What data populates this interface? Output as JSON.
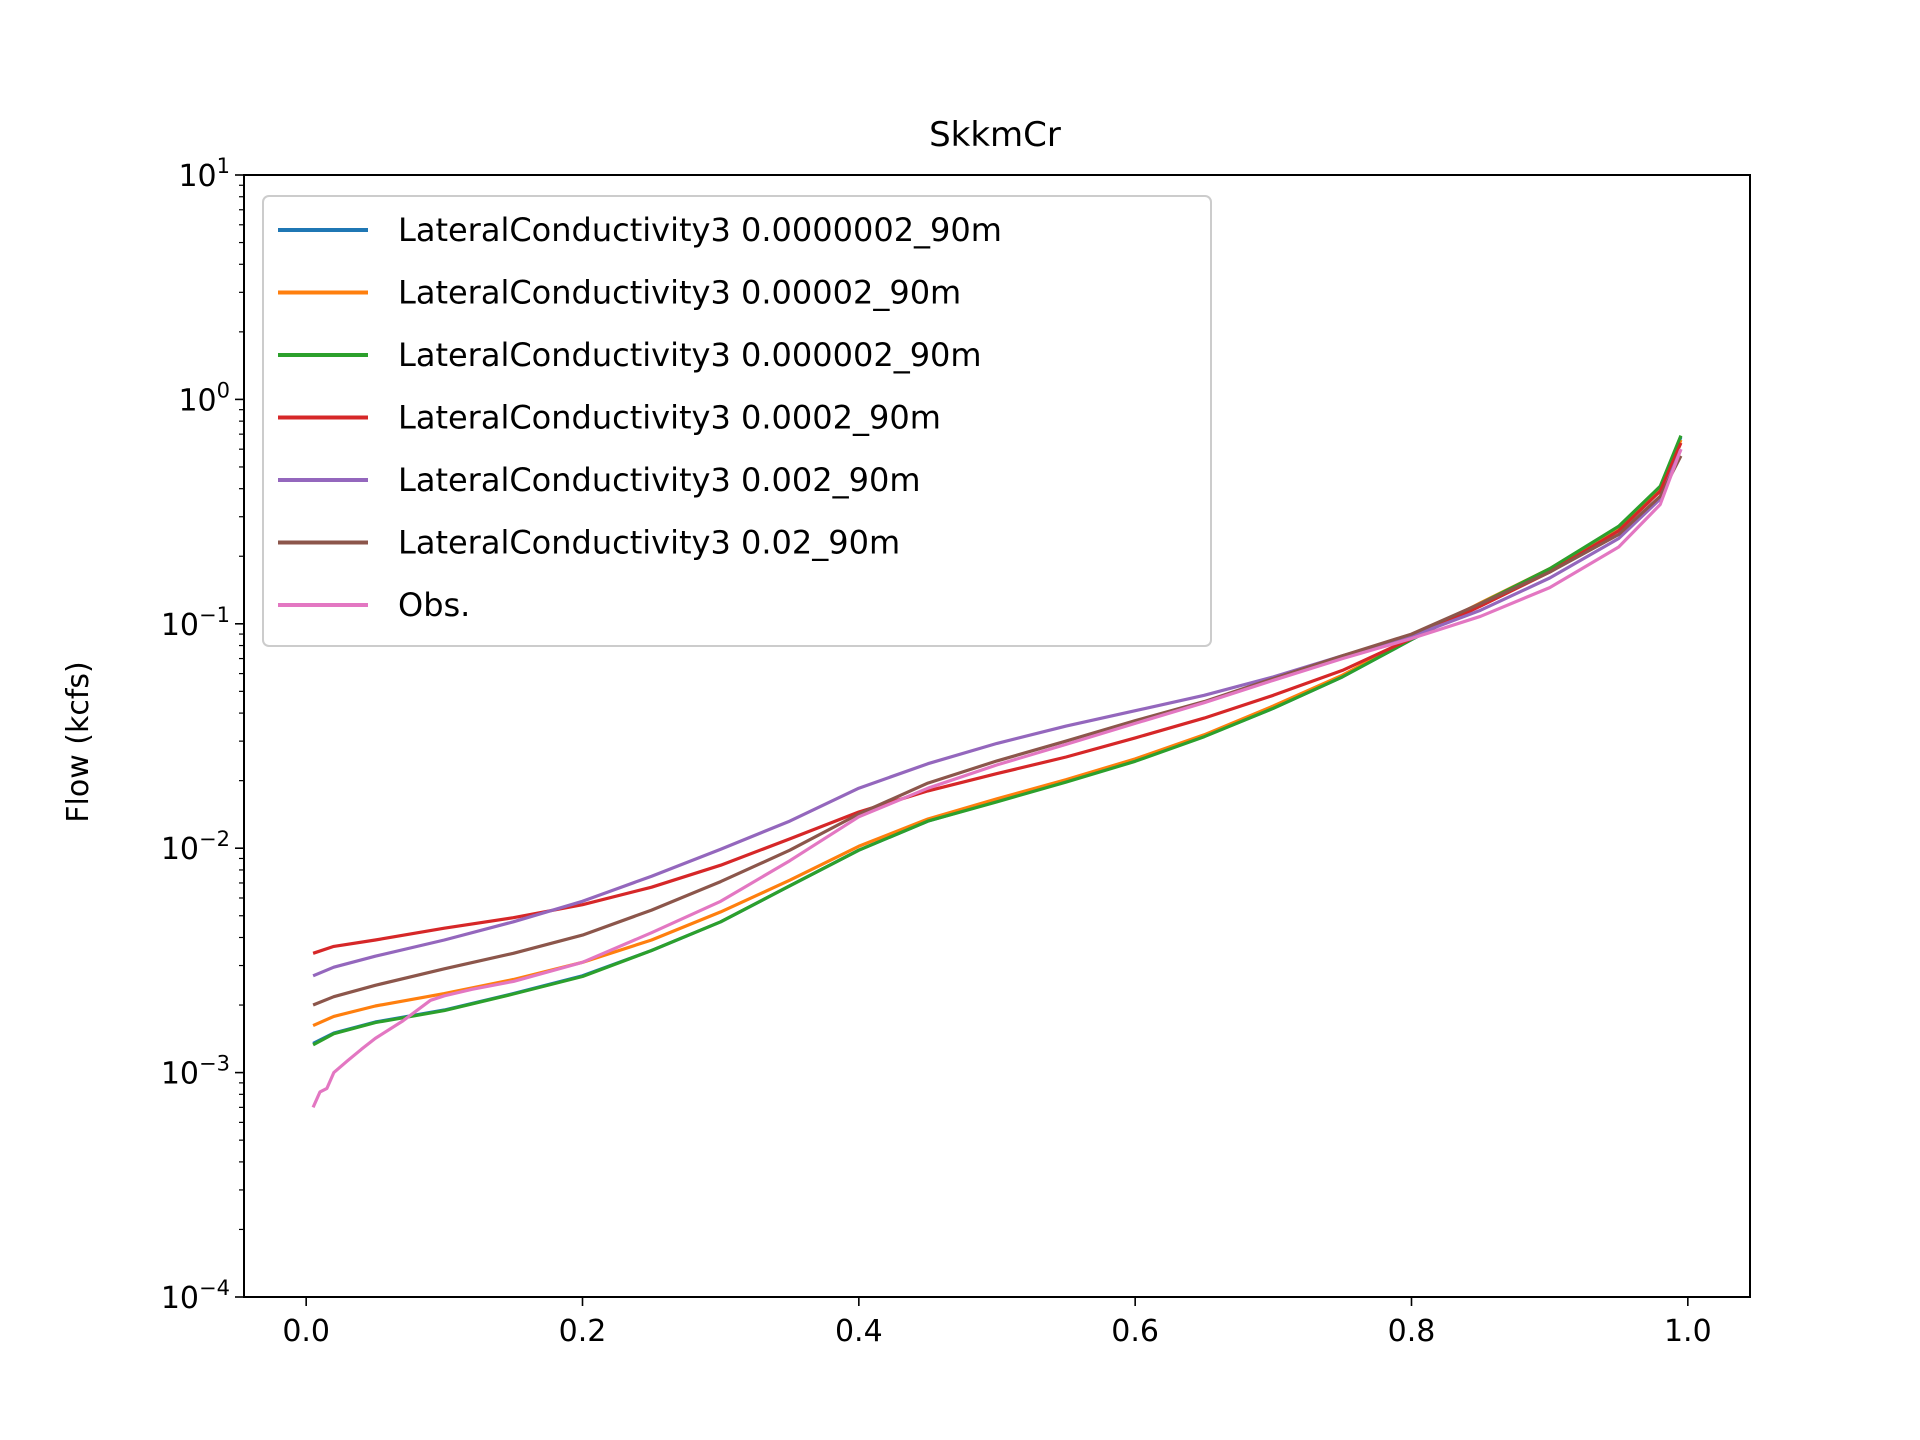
{
  "chart_data": {
    "type": "line",
    "title": "SkkmCr",
    "xlabel": "",
    "ylabel": "Flow (kcfs)",
    "xlim": [
      -0.045,
      1.045
    ],
    "ylim": [
      0.0001,
      10
    ],
    "yscale": "log",
    "x_ticks": [
      "0.0",
      "0.2",
      "0.4",
      "0.6",
      "0.8",
      "1.0"
    ],
    "x_tick_values": [
      0,
      0.2,
      0.4,
      0.6,
      0.8,
      1.0
    ],
    "y_ticks": [
      {
        "base": "10",
        "exp": "1",
        "value": 10
      },
      {
        "base": "10",
        "exp": "0",
        "value": 1
      },
      {
        "base": "10",
        "exp": "−1",
        "value": 0.1
      },
      {
        "base": "10",
        "exp": "−2",
        "value": 0.01
      },
      {
        "base": "10",
        "exp": "−3",
        "value": 0.001
      },
      {
        "base": "10",
        "exp": "−4",
        "value": 0.0001
      }
    ],
    "grid": false,
    "legend_position": "upper-left",
    "series": [
      {
        "name": "LateralConductivity3 0.0000002_90m",
        "color": "#1f77b4",
        "points": [
          [
            0.005,
            0.00135
          ],
          [
            0.02,
            0.0015
          ],
          [
            0.05,
            0.00168
          ],
          [
            0.1,
            0.0019
          ],
          [
            0.15,
            0.00225
          ],
          [
            0.2,
            0.0027
          ],
          [
            0.25,
            0.0035
          ],
          [
            0.3,
            0.0047
          ],
          [
            0.35,
            0.0068
          ],
          [
            0.4,
            0.0098
          ],
          [
            0.45,
            0.0132
          ],
          [
            0.5,
            0.0162
          ],
          [
            0.55,
            0.0198
          ],
          [
            0.6,
            0.0245
          ],
          [
            0.65,
            0.0315
          ],
          [
            0.7,
            0.042
          ],
          [
            0.75,
            0.058
          ],
          [
            0.8,
            0.085
          ],
          [
            0.85,
            0.123
          ],
          [
            0.9,
            0.175
          ],
          [
            0.95,
            0.27
          ],
          [
            0.98,
            0.4
          ],
          [
            0.995,
            0.68
          ]
        ]
      },
      {
        "name": "LateralConductivity3 0.00002_90m",
        "color": "#ff7f0e",
        "points": [
          [
            0.005,
            0.00162
          ],
          [
            0.02,
            0.00178
          ],
          [
            0.05,
            0.00198
          ],
          [
            0.1,
            0.00225
          ],
          [
            0.15,
            0.0026
          ],
          [
            0.2,
            0.0031
          ],
          [
            0.25,
            0.0039
          ],
          [
            0.3,
            0.0052
          ],
          [
            0.35,
            0.0072
          ],
          [
            0.4,
            0.0102
          ],
          [
            0.45,
            0.0135
          ],
          [
            0.5,
            0.0166
          ],
          [
            0.55,
            0.0202
          ],
          [
            0.6,
            0.025
          ],
          [
            0.65,
            0.032
          ],
          [
            0.7,
            0.043
          ],
          [
            0.75,
            0.059
          ],
          [
            0.8,
            0.086
          ],
          [
            0.85,
            0.124
          ],
          [
            0.9,
            0.176
          ],
          [
            0.95,
            0.27
          ],
          [
            0.98,
            0.4
          ],
          [
            0.995,
            0.66
          ]
        ]
      },
      {
        "name": "LateralConductivity3 0.000002_90m",
        "color": "#2ca02c",
        "points": [
          [
            0.005,
            0.00133
          ],
          [
            0.02,
            0.00149
          ],
          [
            0.05,
            0.00167
          ],
          [
            0.1,
            0.00189
          ],
          [
            0.15,
            0.00224
          ],
          [
            0.2,
            0.00268
          ],
          [
            0.25,
            0.0035
          ],
          [
            0.3,
            0.0047
          ],
          [
            0.35,
            0.0068
          ],
          [
            0.4,
            0.0098
          ],
          [
            0.45,
            0.0132
          ],
          [
            0.5,
            0.0161
          ],
          [
            0.55,
            0.0197
          ],
          [
            0.6,
            0.0244
          ],
          [
            0.65,
            0.0314
          ],
          [
            0.7,
            0.042
          ],
          [
            0.75,
            0.058
          ],
          [
            0.8,
            0.085
          ],
          [
            0.85,
            0.123
          ],
          [
            0.9,
            0.176
          ],
          [
            0.95,
            0.272
          ],
          [
            0.98,
            0.41
          ],
          [
            0.995,
            0.69
          ]
        ]
      },
      {
        "name": "LateralConductivity3 0.0002_90m",
        "color": "#d62728",
        "points": [
          [
            0.005,
            0.0034
          ],
          [
            0.02,
            0.00365
          ],
          [
            0.05,
            0.0039
          ],
          [
            0.1,
            0.0044
          ],
          [
            0.15,
            0.0049
          ],
          [
            0.2,
            0.0056
          ],
          [
            0.25,
            0.0067
          ],
          [
            0.3,
            0.0084
          ],
          [
            0.35,
            0.011
          ],
          [
            0.4,
            0.0145
          ],
          [
            0.45,
            0.018
          ],
          [
            0.5,
            0.0215
          ],
          [
            0.55,
            0.0255
          ],
          [
            0.6,
            0.031
          ],
          [
            0.65,
            0.038
          ],
          [
            0.7,
            0.048
          ],
          [
            0.75,
            0.062
          ],
          [
            0.8,
            0.086
          ],
          [
            0.85,
            0.12
          ],
          [
            0.9,
            0.17
          ],
          [
            0.95,
            0.26
          ],
          [
            0.98,
            0.39
          ],
          [
            0.995,
            0.64
          ]
        ]
      },
      {
        "name": "LateralConductivity3 0.002_90m",
        "color": "#9467bd",
        "points": [
          [
            0.005,
            0.0027
          ],
          [
            0.02,
            0.00295
          ],
          [
            0.05,
            0.0033
          ],
          [
            0.1,
            0.0039
          ],
          [
            0.15,
            0.0047
          ],
          [
            0.2,
            0.0058
          ],
          [
            0.25,
            0.0075
          ],
          [
            0.3,
            0.0099
          ],
          [
            0.35,
            0.0132
          ],
          [
            0.4,
            0.0185
          ],
          [
            0.45,
            0.0238
          ],
          [
            0.5,
            0.0293
          ],
          [
            0.55,
            0.035
          ],
          [
            0.6,
            0.041
          ],
          [
            0.65,
            0.048
          ],
          [
            0.7,
            0.058
          ],
          [
            0.75,
            0.072
          ],
          [
            0.8,
            0.088
          ],
          [
            0.85,
            0.115
          ],
          [
            0.9,
            0.16
          ],
          [
            0.95,
            0.24
          ],
          [
            0.98,
            0.36
          ],
          [
            0.995,
            0.6
          ]
        ]
      },
      {
        "name": "LateralConductivity3 0.02_90m",
        "color": "#8c564b",
        "points": [
          [
            0.005,
            0.002
          ],
          [
            0.02,
            0.00218
          ],
          [
            0.05,
            0.00245
          ],
          [
            0.1,
            0.0029
          ],
          [
            0.15,
            0.0034
          ],
          [
            0.2,
            0.0041
          ],
          [
            0.25,
            0.0053
          ],
          [
            0.3,
            0.0071
          ],
          [
            0.35,
            0.0098
          ],
          [
            0.4,
            0.0142
          ],
          [
            0.45,
            0.0195
          ],
          [
            0.5,
            0.0245
          ],
          [
            0.55,
            0.03
          ],
          [
            0.6,
            0.037
          ],
          [
            0.65,
            0.045
          ],
          [
            0.7,
            0.057
          ],
          [
            0.75,
            0.072
          ],
          [
            0.8,
            0.09
          ],
          [
            0.85,
            0.123
          ],
          [
            0.9,
            0.17
          ],
          [
            0.95,
            0.25
          ],
          [
            0.98,
            0.37
          ],
          [
            0.995,
            0.56
          ]
        ]
      },
      {
        "name": "Obs.",
        "color": "#e377c2",
        "points": [
          [
            0.005,
            0.0007
          ],
          [
            0.01,
            0.00082
          ],
          [
            0.015,
            0.00085
          ],
          [
            0.02,
            0.001
          ],
          [
            0.03,
            0.00113
          ],
          [
            0.04,
            0.00127
          ],
          [
            0.05,
            0.00142
          ],
          [
            0.07,
            0.0017
          ],
          [
            0.09,
            0.0021
          ],
          [
            0.1,
            0.0022
          ],
          [
            0.12,
            0.00235
          ],
          [
            0.15,
            0.00255
          ],
          [
            0.2,
            0.0031
          ],
          [
            0.25,
            0.0042
          ],
          [
            0.3,
            0.0058
          ],
          [
            0.35,
            0.0088
          ],
          [
            0.4,
            0.0138
          ],
          [
            0.45,
            0.0185
          ],
          [
            0.5,
            0.0235
          ],
          [
            0.55,
            0.029
          ],
          [
            0.6,
            0.036
          ],
          [
            0.65,
            0.0445
          ],
          [
            0.7,
            0.056
          ],
          [
            0.75,
            0.07
          ],
          [
            0.8,
            0.086
          ],
          [
            0.85,
            0.108
          ],
          [
            0.9,
            0.145
          ],
          [
            0.95,
            0.22
          ],
          [
            0.98,
            0.34
          ],
          [
            0.995,
            0.6
          ]
        ]
      }
    ]
  }
}
